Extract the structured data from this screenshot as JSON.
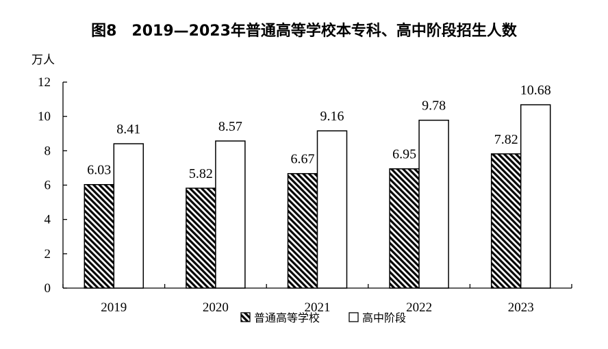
{
  "title": "图8　2019—2023年普通高等学校本专科、高中阶段招生人数",
  "chart_data": {
    "type": "bar",
    "title": "图8　2019—2023年普通高等学校本专科、高中阶段招生人数",
    "ylabel": "万人",
    "xlabel": "",
    "categories": [
      "2019",
      "2020",
      "2021",
      "2022",
      "2023"
    ],
    "series": [
      {
        "name": "普通高等学校",
        "values": [
          6.03,
          5.82,
          6.67,
          6.95,
          7.82
        ],
        "value_labels": [
          "6.03",
          "5.82",
          "6.67",
          "6.95",
          "7.82"
        ],
        "fill": "hatched"
      },
      {
        "name": "高中阶段",
        "values": [
          8.41,
          8.57,
          9.16,
          9.78,
          10.68
        ],
        "value_labels": [
          "8.41",
          "8.57",
          "9.16",
          "9.78",
          "10.68"
        ],
        "fill": "white"
      }
    ],
    "ylim": [
      0,
      12
    ],
    "yticks": [
      "0",
      "2",
      "4",
      "6",
      "8",
      "10",
      "12"
    ],
    "grid": false,
    "legend_position": "bottom"
  },
  "colors": {
    "bar_stroke": "#000000",
    "hatch": "#000000",
    "background": "#ffffff"
  }
}
